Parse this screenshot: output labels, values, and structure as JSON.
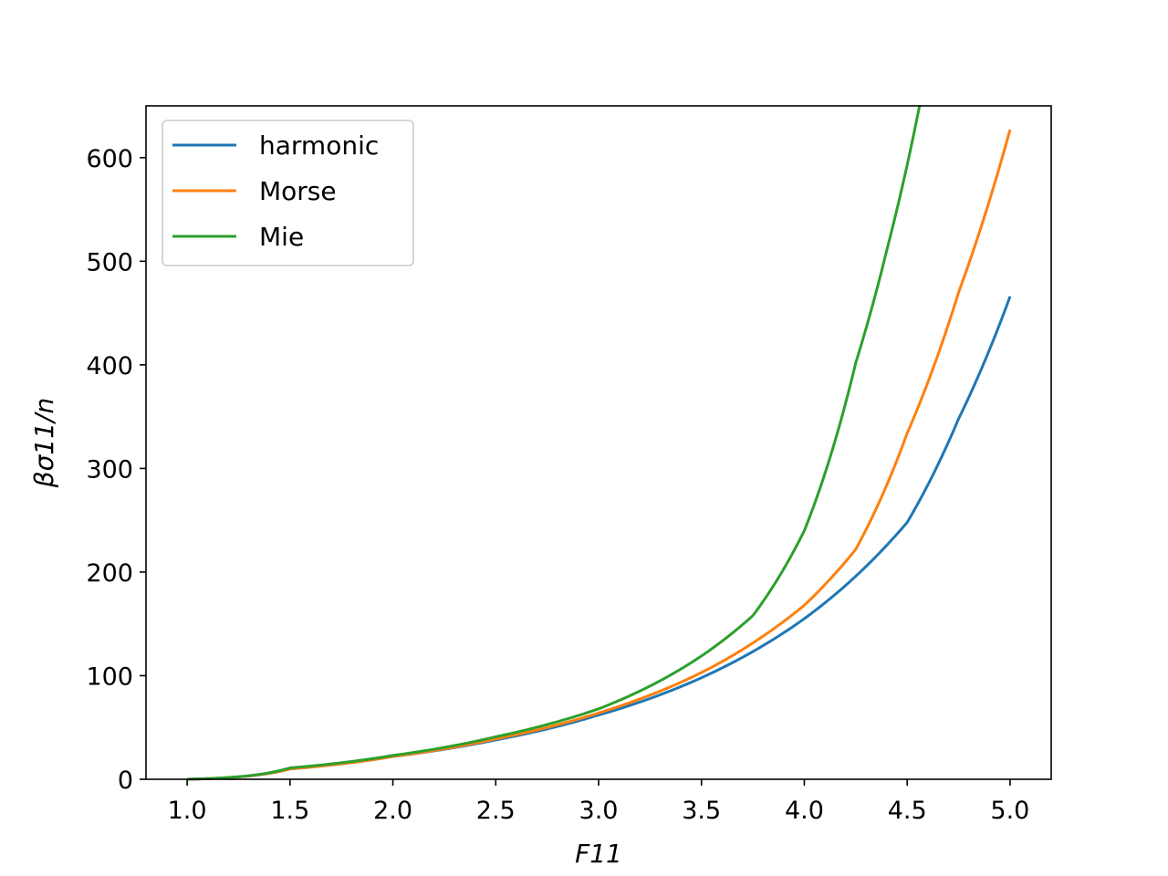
{
  "chart_data": {
    "type": "line",
    "xlabel": "F11",
    "ylabel": "βσ11/n",
    "xlim": [
      0.8,
      5.2
    ],
    "ylim": [
      0,
      650
    ],
    "x_ticks": [
      "1.0",
      "1.5",
      "2.0",
      "2.5",
      "3.0",
      "3.5",
      "4.0",
      "4.5",
      "5.0"
    ],
    "y_ticks": [
      "0",
      "100",
      "200",
      "300",
      "400",
      "500",
      "600"
    ],
    "grid": false,
    "legend_position": "upper-left",
    "colors": {
      "harmonic": "#1f77b4",
      "Morse": "#ff7f0e",
      "Mie": "#2ca02c"
    },
    "x": [
      1.0,
      1.5,
      2.0,
      2.5,
      3.0,
      3.5,
      4.0,
      4.25,
      4.5,
      4.75,
      5.0
    ],
    "series": [
      {
        "name": "harmonic",
        "color": "#1f77b4",
        "values": [
          0,
          10,
          22,
          38,
          62,
          98,
          155,
          196,
          248,
          348,
          466
        ]
      },
      {
        "name": "Morse",
        "color": "#ff7f0e",
        "values": [
          0,
          10,
          22,
          39,
          64,
          103,
          168,
          222,
          334,
          470,
          627
        ]
      }
    ],
    "extra_series": [
      {
        "name": "Mie",
        "color": "#2ca02c",
        "x": [
          1.0,
          1.5,
          2.0,
          2.5,
          3.0,
          3.5,
          3.75,
          4.0,
          4.25,
          4.4,
          4.5,
          4.56
        ],
        "values": [
          0,
          11,
          23,
          41,
          68,
          119,
          158,
          240,
          402,
          510,
          593,
          650
        ]
      }
    ]
  }
}
